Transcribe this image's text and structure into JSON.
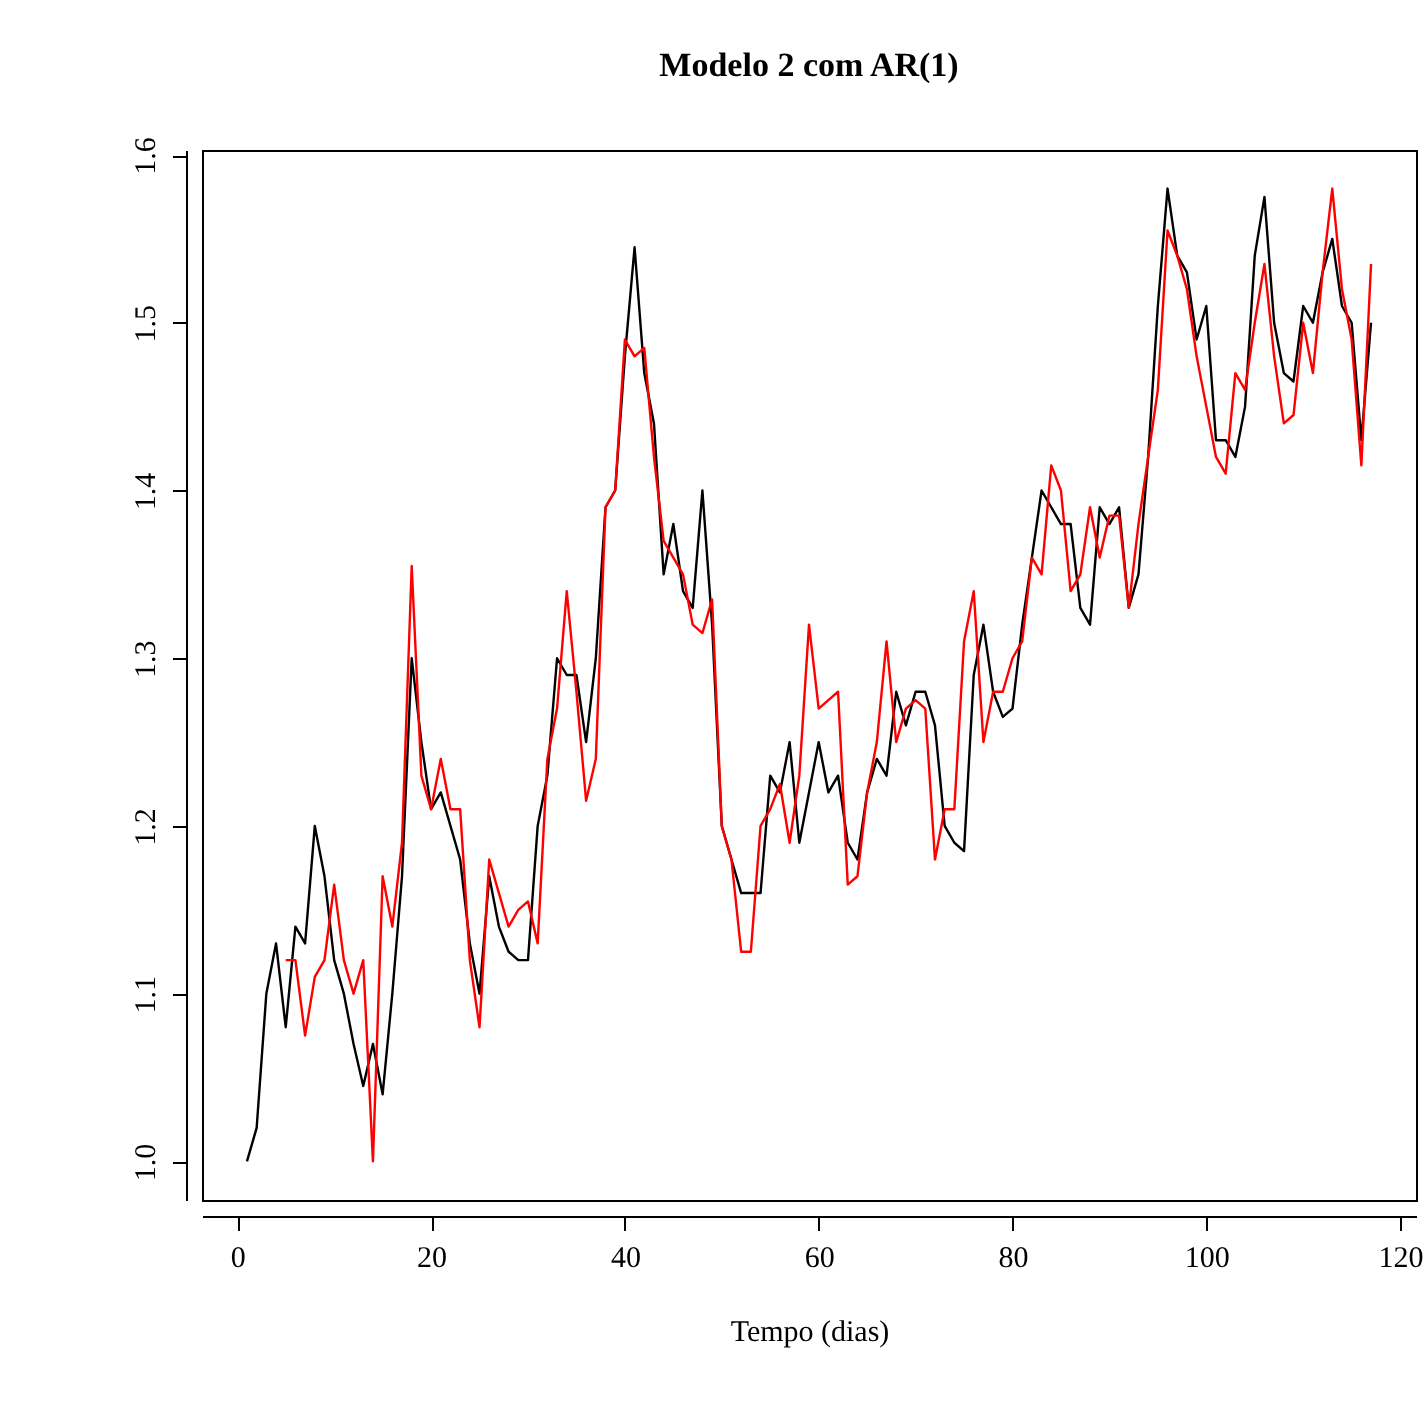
{
  "chart_data": {
    "type": "line",
    "title": "Modelo 2 com AR(1)",
    "xlabel": "Tempo (dias)",
    "xlim": [
      -3.64,
      121.64
    ],
    "ylim": [
      0.977,
      1.603
    ],
    "xticks": [
      0,
      20,
      40,
      60,
      80,
      100,
      120
    ],
    "yticks": [
      {
        "value": 1,
        "label": "1.0"
      },
      {
        "value": 1.1,
        "label": "1.1"
      },
      {
        "value": 1.2,
        "label": "1.2"
      },
      {
        "value": 1.3,
        "label": "1.3"
      },
      {
        "value": 1.4,
        "label": "1.4"
      },
      {
        "value": 1.5,
        "label": "1.5"
      },
      {
        "value": 1.6,
        "label": "1.6"
      }
    ],
    "grid": false,
    "legend": false,
    "marker": "none",
    "line_style": "solid",
    "series": [
      {
        "color": "#000000",
        "x": [
          1,
          2,
          3,
          4,
          5,
          6,
          7,
          8,
          9,
          10,
          11,
          12,
          13,
          14,
          15,
          16,
          17,
          18,
          19,
          20,
          21,
          22,
          23,
          24,
          25,
          26,
          27,
          28,
          29,
          30,
          31,
          32,
          33,
          34,
          35,
          36,
          37,
          38,
          39,
          40,
          41,
          42,
          43,
          44,
          45,
          46,
          47,
          48,
          49,
          50,
          51,
          52,
          53,
          54,
          55,
          56,
          57,
          58,
          59,
          60,
          61,
          62,
          63,
          64,
          65,
          66,
          67,
          68,
          69,
          70,
          71,
          72,
          73,
          74,
          75,
          76,
          77,
          78,
          79,
          80,
          81,
          82,
          83,
          84,
          85,
          86,
          87,
          88,
          89,
          90,
          91,
          92,
          93,
          94,
          95,
          96,
          97,
          98,
          99,
          100,
          101,
          102,
          103,
          104,
          105,
          106,
          107,
          108,
          109,
          110,
          111,
          112,
          113,
          114,
          115,
          116,
          117
        ],
        "values": [
          1.0,
          1.02,
          1.1,
          1.13,
          1.08,
          1.14,
          1.13,
          1.2,
          1.17,
          1.12,
          1.1,
          1.07,
          1.045,
          1.07,
          1.04,
          1.1,
          1.17,
          1.3,
          1.25,
          1.21,
          1.22,
          1.2,
          1.18,
          1.13,
          1.1,
          1.17,
          1.14,
          1.125,
          1.12,
          1.12,
          1.2,
          1.23,
          1.3,
          1.29,
          1.29,
          1.25,
          1.3,
          1.39,
          1.4,
          1.48,
          1.545,
          1.47,
          1.44,
          1.35,
          1.38,
          1.34,
          1.33,
          1.4,
          1.32,
          1.2,
          1.18,
          1.16,
          1.16,
          1.16,
          1.23,
          1.22,
          1.25,
          1.19,
          1.22,
          1.25,
          1.22,
          1.23,
          1.19,
          1.18,
          1.22,
          1.24,
          1.23,
          1.28,
          1.26,
          1.28,
          1.28,
          1.26,
          1.2,
          1.19,
          1.185,
          1.29,
          1.32,
          1.28,
          1.265,
          1.27,
          1.32,
          1.36,
          1.4,
          1.39,
          1.38,
          1.38,
          1.33,
          1.32,
          1.39,
          1.38,
          1.39,
          1.33,
          1.35,
          1.42,
          1.51,
          1.58,
          1.54,
          1.53,
          1.49,
          1.51,
          1.43,
          1.43,
          1.42,
          1.45,
          1.54,
          1.575,
          1.5,
          1.47,
          1.465,
          1.51,
          1.5,
          1.53,
          1.55,
          1.51,
          1.5,
          1.43,
          1.5
        ]
      },
      {
        "color": "#ff0000",
        "x": [
          5,
          6,
          7,
          8,
          9,
          10,
          11,
          12,
          13,
          14,
          15,
          16,
          17,
          18,
          19,
          20,
          21,
          22,
          23,
          24,
          25,
          26,
          27,
          28,
          29,
          30,
          31,
          32,
          33,
          34,
          35,
          36,
          37,
          38,
          39,
          40,
          41,
          42,
          43,
          44,
          45,
          46,
          47,
          48,
          49,
          50,
          51,
          52,
          53,
          54,
          55,
          56,
          57,
          58,
          59,
          60,
          61,
          62,
          63,
          64,
          65,
          66,
          67,
          68,
          69,
          70,
          71,
          72,
          73,
          74,
          75,
          76,
          77,
          78,
          79,
          80,
          81,
          82,
          83,
          84,
          85,
          86,
          87,
          88,
          89,
          90,
          91,
          92,
          93,
          94,
          95,
          96,
          97,
          98,
          99,
          100,
          101,
          102,
          103,
          104,
          105,
          106,
          107,
          108,
          109,
          110,
          111,
          112,
          113,
          114,
          115,
          116,
          117
        ],
        "values": [
          1.12,
          1.12,
          1.075,
          1.11,
          1.12,
          1.165,
          1.12,
          1.1,
          1.12,
          1.0,
          1.17,
          1.14,
          1.19,
          1.355,
          1.23,
          1.21,
          1.24,
          1.21,
          1.21,
          1.12,
          1.08,
          1.18,
          1.16,
          1.14,
          1.15,
          1.155,
          1.13,
          1.24,
          1.27,
          1.34,
          1.28,
          1.215,
          1.24,
          1.39,
          1.4,
          1.49,
          1.48,
          1.485,
          1.42,
          1.37,
          1.36,
          1.35,
          1.32,
          1.315,
          1.335,
          1.2,
          1.18,
          1.125,
          1.125,
          1.2,
          1.21,
          1.225,
          1.19,
          1.23,
          1.32,
          1.27,
          1.275,
          1.28,
          1.165,
          1.17,
          1.22,
          1.25,
          1.31,
          1.25,
          1.27,
          1.275,
          1.27,
          1.18,
          1.21,
          1.21,
          1.31,
          1.34,
          1.25,
          1.28,
          1.28,
          1.3,
          1.31,
          1.36,
          1.35,
          1.415,
          1.4,
          1.34,
          1.35,
          1.39,
          1.36,
          1.385,
          1.385,
          1.33,
          1.38,
          1.42,
          1.46,
          1.555,
          1.54,
          1.52,
          1.48,
          1.45,
          1.42,
          1.41,
          1.47,
          1.46,
          1.5,
          1.535,
          1.48,
          1.44,
          1.445,
          1.5,
          1.47,
          1.53,
          1.58,
          1.52,
          1.49,
          1.415,
          1.535
        ]
      }
    ]
  }
}
